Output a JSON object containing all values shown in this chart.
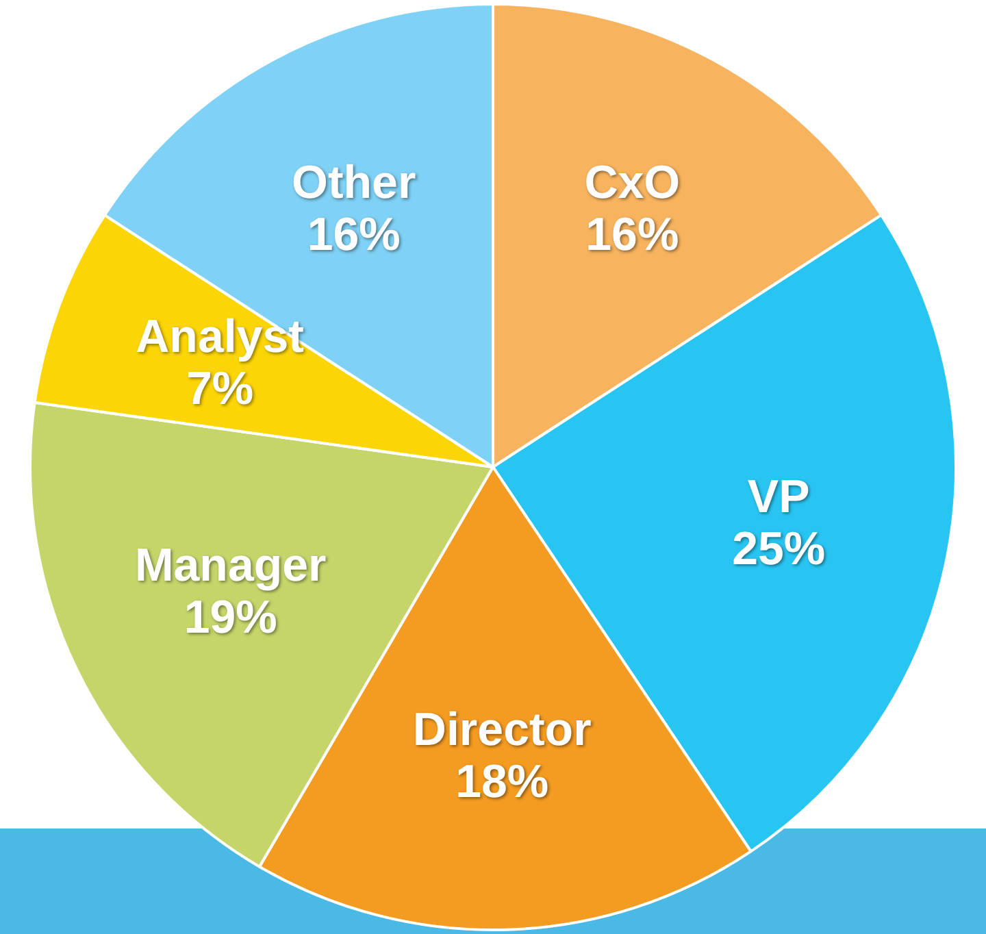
{
  "chart_data": {
    "type": "pie",
    "categories": [
      "CxO",
      "VP",
      "Director",
      "Manager",
      "Analyst",
      "Other"
    ],
    "values": [
      16,
      25,
      18,
      19,
      7,
      16
    ],
    "value_labels": [
      "16%",
      "25%",
      "18%",
      "19%",
      "7%",
      "16%"
    ],
    "colors": [
      "#f7b35e",
      "#29c5f2",
      "#f49b22",
      "#c6d56a",
      "#fcd507",
      "#7fd1f5"
    ]
  }
}
